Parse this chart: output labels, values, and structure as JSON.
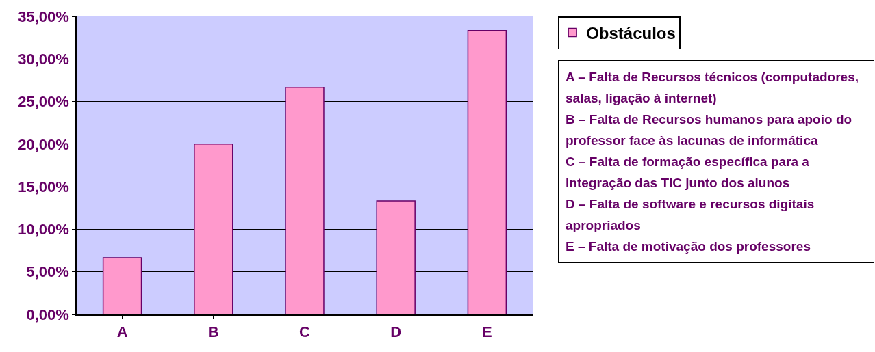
{
  "chart_data": {
    "type": "bar",
    "categories": [
      "A",
      "B",
      "C",
      "D",
      "E"
    ],
    "series": [
      {
        "name": "Obstáculos",
        "color": "#ff99cc",
        "values": [
          6.67,
          20,
          26.67,
          13.33,
          33.33
        ]
      }
    ],
    "ylim": [
      0,
      35
    ],
    "yticks": [
      {
        "value": 0,
        "label": "0,00%"
      },
      {
        "value": 5,
        "label": "5,00%"
      },
      {
        "value": 10,
        "label": "10,00%"
      },
      {
        "value": 15,
        "label": "15,00%"
      },
      {
        "value": 20,
        "label": "20,00%"
      },
      {
        "value": 25,
        "label": "25,00%"
      },
      {
        "value": 30,
        "label": "30,00%"
      },
      {
        "value": 35,
        "label": "35,00%"
      }
    ],
    "grid": "y",
    "legend": "top right",
    "annotations": [
      "A – Falta de Recursos técnicos (computadores, salas, ligação à internet)",
      "B – Falta de Recursos humanos para apoio do professor face às lacunas de informática",
      "C – Falta de formação específica para a integração das TIC junto dos alunos",
      "D – Falta de software e recursos digitais apropriados",
      "E – Falta de motivação dos professores"
    ]
  }
}
